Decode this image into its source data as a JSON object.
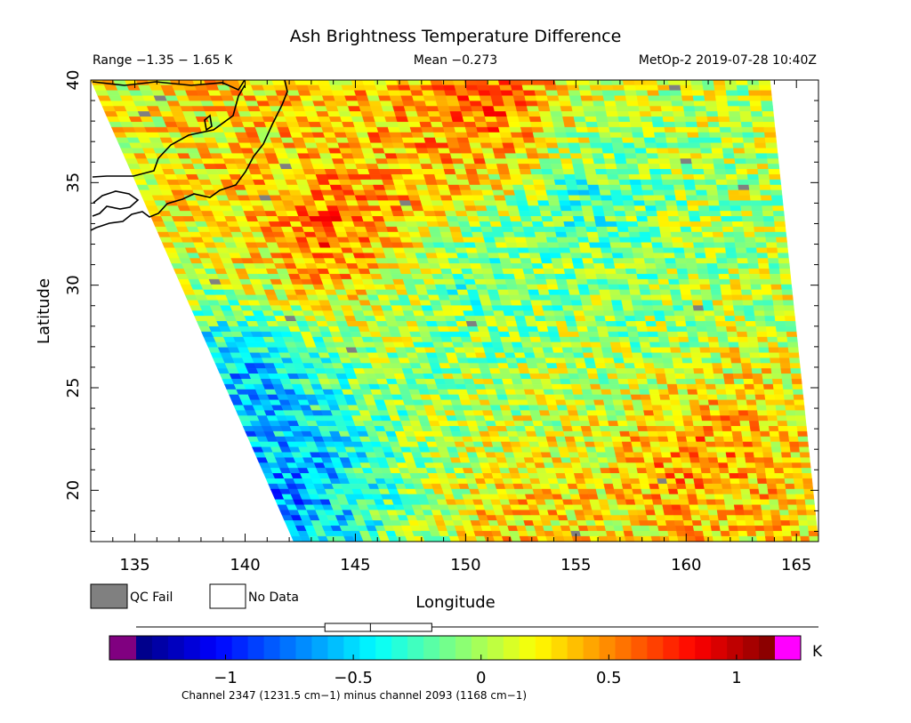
{
  "header": {
    "title": "Ash Brightness Temperature Difference",
    "range_text": "Range −1.35 − 1.65 K",
    "mean_text": "Mean −0.273",
    "satellite_time": "MetOp-2 2019-07-28 10:40Z"
  },
  "legend": {
    "qc_fail_label": "QC Fail",
    "qc_fail_color": "#808080",
    "no_data_label": "No Data",
    "no_data_color": "#ffffff"
  },
  "colorbar": {
    "unit": "K",
    "caption": "Channel 2347 (1231.5 cm−1) minus channel 2093 (1168 cm−1)",
    "min": -1.35,
    "max": 1.15,
    "ticks": [
      -1,
      -0.5,
      0,
      0.5,
      1
    ],
    "tick_labels": [
      "−1",
      "−0.5",
      "0",
      "0.5",
      "1"
    ],
    "under_color": "#800080",
    "over_color": "#ff00ff",
    "boxplot": {
      "whisker_low": -1.35,
      "q1": -0.52,
      "median": -0.32,
      "q3": -0.05,
      "whisker_high": 1.65
    }
  },
  "chart_data": {
    "type": "heatmap",
    "title": "Ash Brightness Temperature Difference",
    "xlabel": "Longitude",
    "ylabel": "Latitude",
    "xlim": [
      133,
      166
    ],
    "ylim": [
      17.5,
      40
    ],
    "x_ticks": [
      135,
      140,
      145,
      150,
      155,
      160,
      165
    ],
    "y_ticks": [
      20,
      25,
      30,
      35,
      40
    ],
    "value_range": [
      -1.35,
      1.65
    ],
    "mean": -0.273,
    "units": "K",
    "swath": {
      "corners": [
        [
          133,
          40
        ],
        [
          163.8,
          40
        ],
        [
          166,
          17.5
        ],
        [
          142.2,
          17.5
        ]
      ]
    },
    "regions": [
      {
        "lon": 144,
        "lat": 32.5,
        "value": 0.9
      },
      {
        "lon": 151,
        "lat": 38,
        "value": 0.75
      },
      {
        "lon": 147,
        "lat": 36,
        "value": 0.45
      },
      {
        "lon": 140,
        "lat": 35,
        "value": 0.3
      },
      {
        "lon": 160,
        "lat": 22,
        "value": 0.6
      },
      {
        "lon": 152,
        "lat": 19,
        "value": 0.4
      },
      {
        "lon": 140,
        "lat": 25,
        "value": -0.8
      },
      {
        "lon": 142,
        "lat": 20,
        "value": -0.85
      },
      {
        "lon": 150,
        "lat": 30,
        "value": -0.4
      },
      {
        "lon": 155,
        "lat": 34,
        "value": -0.45
      },
      {
        "lon": 150,
        "lat": 26,
        "value": 0.0
      },
      {
        "lon": 158,
        "lat": 28,
        "value": -0.1
      }
    ]
  }
}
